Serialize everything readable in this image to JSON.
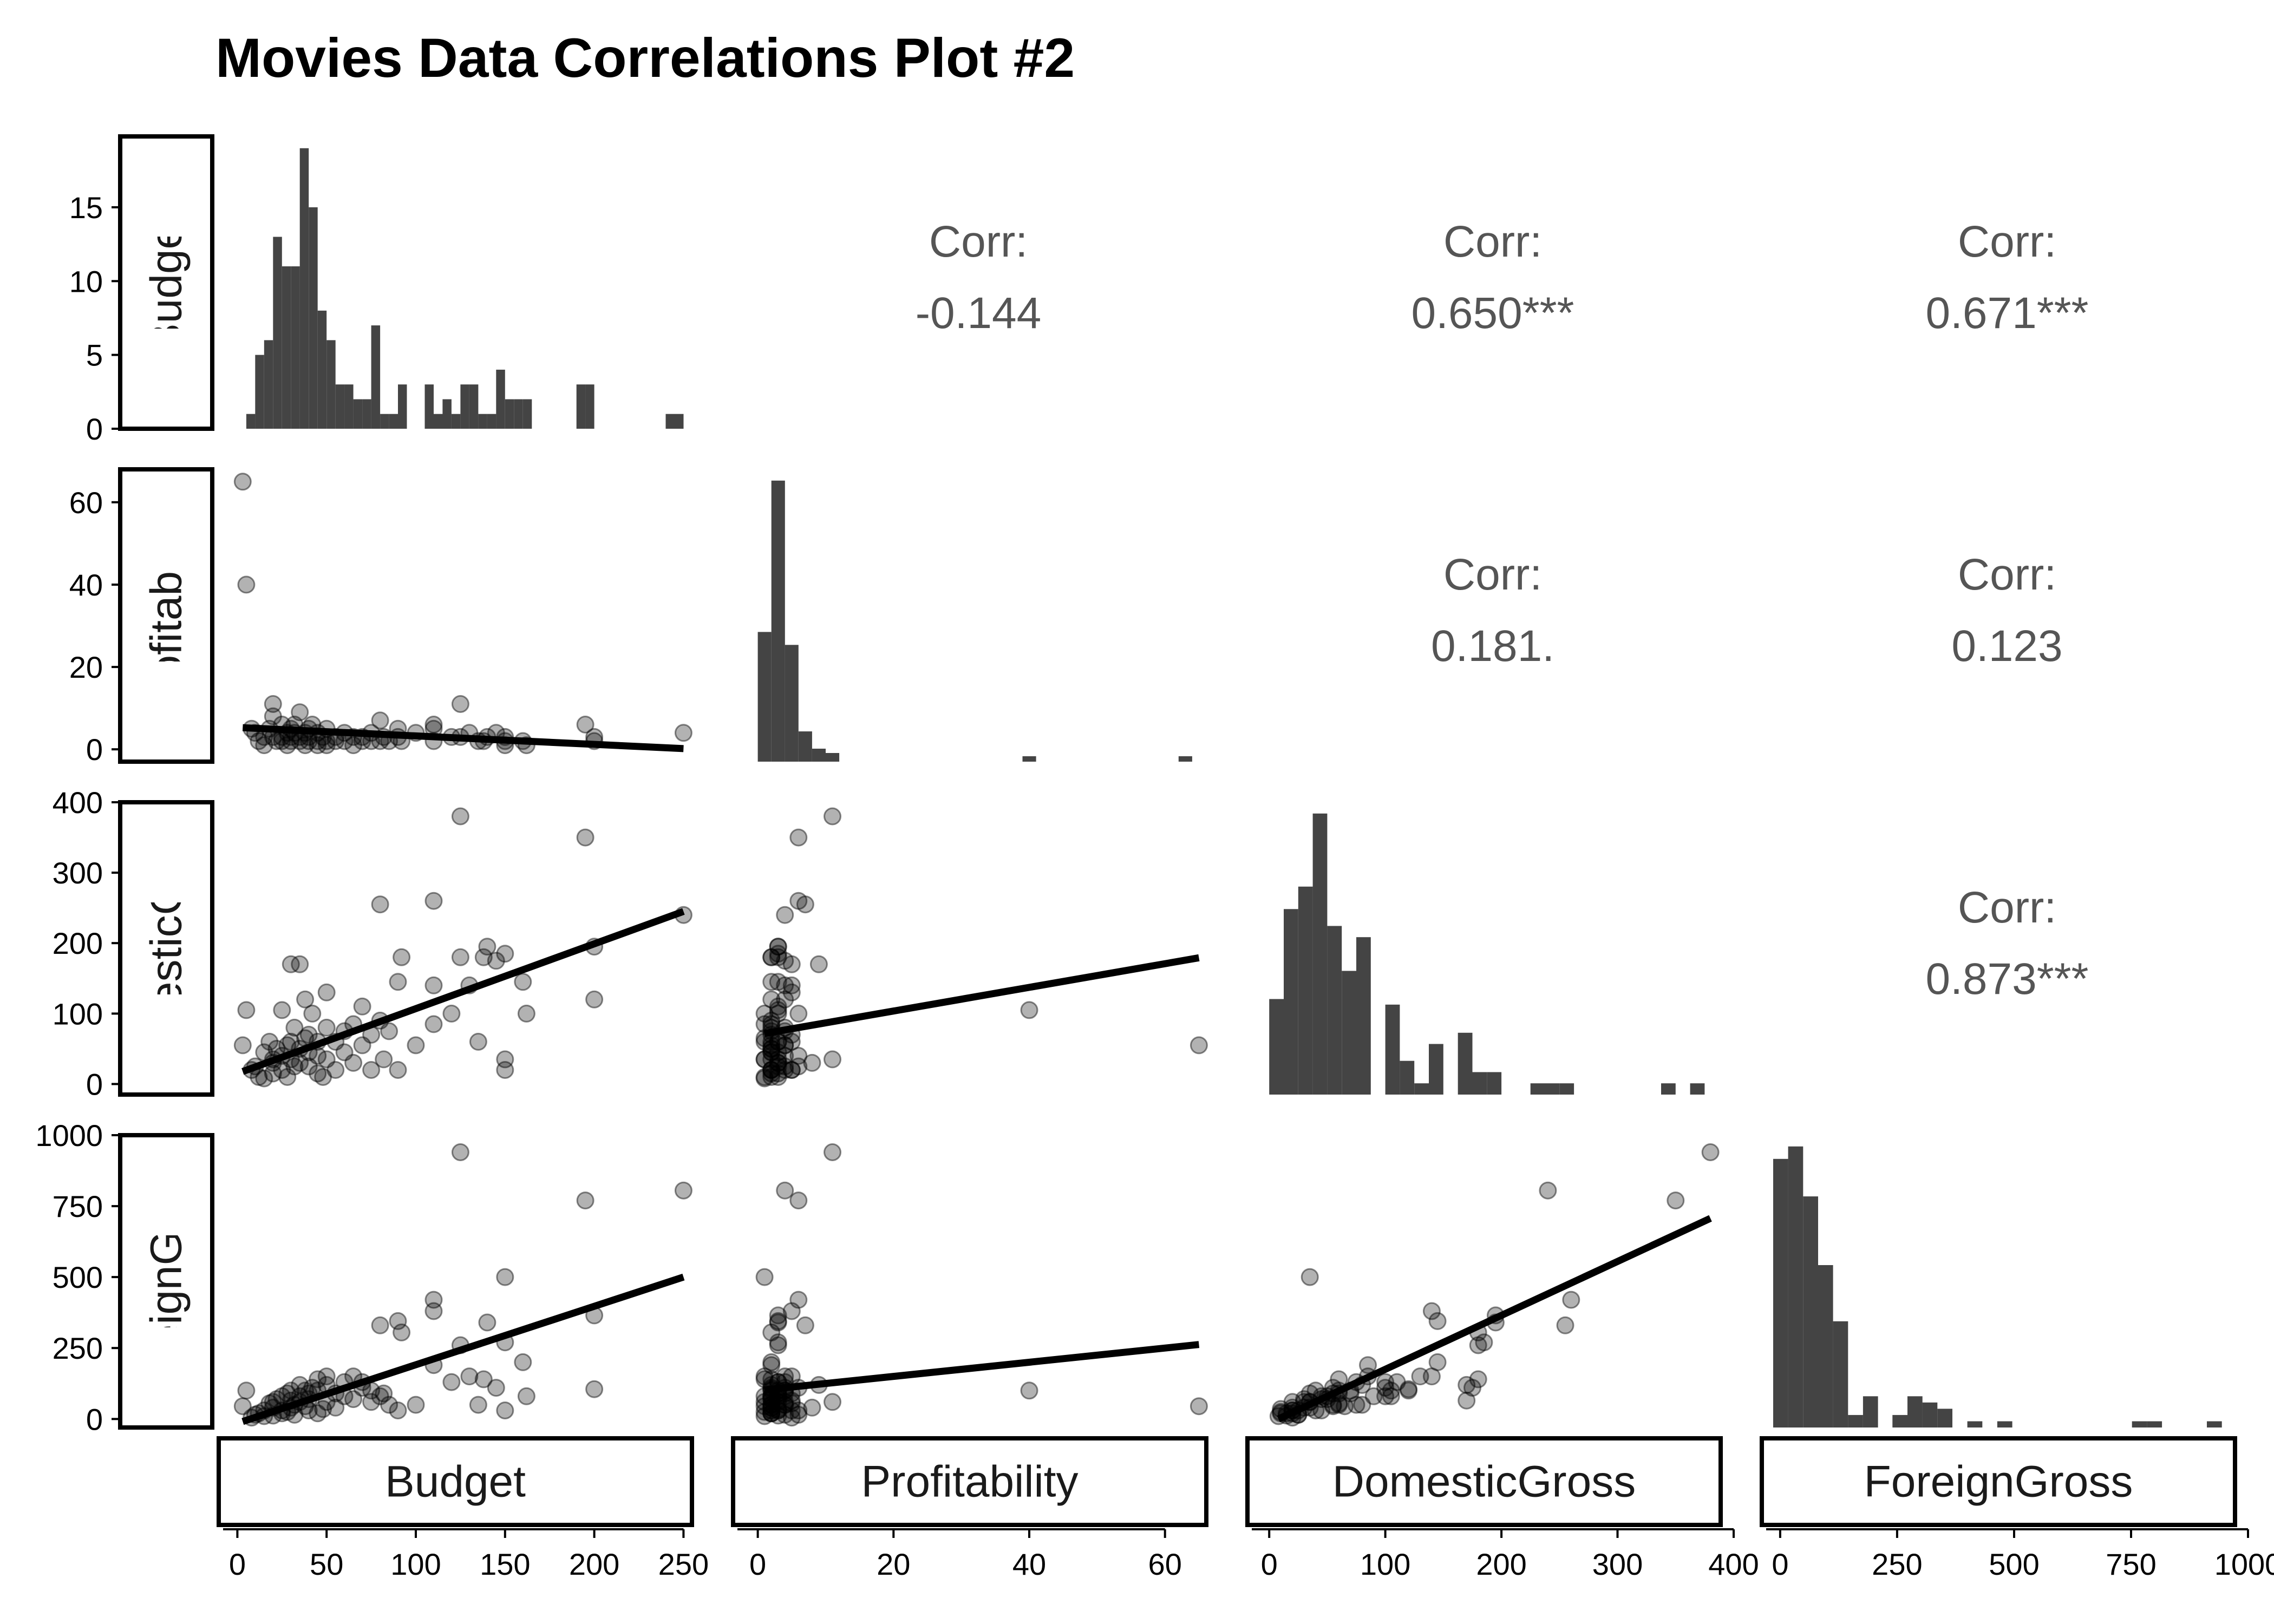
{
  "chart_data": {
    "type": "scatter-matrix",
    "title": "Movies Data Correlations Plot #2",
    "variables": [
      "Budget",
      "Profitability",
      "DomesticGross",
      "ForeignGross"
    ],
    "axes": {
      "Budget": {
        "range": [
          -8,
          262
        ],
        "ticks": [
          0,
          50,
          100,
          150,
          200,
          250
        ]
      },
      "Profitability": {
        "range": [
          -3,
          68
        ],
        "ticks": [
          0,
          20,
          40,
          60
        ]
      },
      "DomesticGross": {
        "range": [
          -15,
          400
        ],
        "ticks": [
          0,
          100,
          200,
          300,
          400
        ]
      },
      "ForeignGross": {
        "range": [
          -30,
          1000
        ],
        "ticks": [
          0,
          250,
          500,
          750,
          1000
        ]
      }
    },
    "histogram": {
      "Budget": {
        "ylim": [
          0,
          19.8
        ],
        "ticks": [
          0,
          5,
          10,
          15
        ],
        "bin_width": 5,
        "bins": [
          [
            5,
            1
          ],
          [
            10,
            5
          ],
          [
            15,
            6
          ],
          [
            20,
            13
          ],
          [
            25,
            11
          ],
          [
            30,
            11
          ],
          [
            35,
            19
          ],
          [
            40,
            15
          ],
          [
            45,
            8
          ],
          [
            50,
            6
          ],
          [
            55,
            3
          ],
          [
            60,
            3
          ],
          [
            65,
            2
          ],
          [
            70,
            2
          ],
          [
            75,
            7
          ],
          [
            80,
            1
          ],
          [
            85,
            1
          ],
          [
            90,
            3
          ],
          [
            95,
            0
          ],
          [
            100,
            0
          ],
          [
            105,
            3
          ],
          [
            110,
            1
          ],
          [
            115,
            2
          ],
          [
            120,
            1
          ],
          [
            125,
            3
          ],
          [
            130,
            3
          ],
          [
            135,
            1
          ],
          [
            140,
            1
          ],
          [
            145,
            4
          ],
          [
            150,
            2
          ],
          [
            155,
            2
          ],
          [
            160,
            2
          ],
          [
            190,
            3
          ],
          [
            195,
            3
          ],
          [
            240,
            1
          ],
          [
            245,
            1
          ]
        ]
      },
      "Profitability": {
        "bin_width": 2,
        "bins": [
          [
            0,
            30
          ],
          [
            2,
            65
          ],
          [
            4,
            27
          ],
          [
            6,
            7
          ],
          [
            8,
            3
          ],
          [
            10,
            2
          ],
          [
            39,
            1
          ],
          [
            62,
            1
          ]
        ]
      },
      "DomesticGross": {
        "bin_width": 12.5,
        "bins": [
          [
            0,
            17
          ],
          [
            12.5,
            33
          ],
          [
            25,
            37
          ],
          [
            37.5,
            50
          ],
          [
            50,
            30
          ],
          [
            62.5,
            22
          ],
          [
            75,
            28
          ],
          [
            100,
            16
          ],
          [
            112.5,
            6
          ],
          [
            125,
            2
          ],
          [
            137.5,
            9
          ],
          [
            162.5,
            11
          ],
          [
            175,
            4
          ],
          [
            187.5,
            4
          ],
          [
            225,
            2
          ],
          [
            237.5,
            2
          ],
          [
            250,
            2
          ],
          [
            337.5,
            2
          ],
          [
            362.5,
            2
          ]
        ]
      },
      "ForeignGross": {
        "bin_width": 32,
        "bins": [
          [
            -15,
            43
          ],
          [
            17,
            45
          ],
          [
            49,
            37
          ],
          [
            81,
            26
          ],
          [
            113,
            17
          ],
          [
            145,
            2
          ],
          [
            177,
            5
          ],
          [
            240,
            2
          ],
          [
            272,
            5
          ],
          [
            304,
            4
          ],
          [
            336,
            3
          ],
          [
            400,
            1
          ],
          [
            464,
            1
          ],
          [
            752,
            1
          ],
          [
            784,
            1
          ],
          [
            912,
            1
          ]
        ]
      }
    },
    "correlations": [
      {
        "row": "Budget",
        "col": "Profitability",
        "label": "Corr:",
        "value": "-0.144"
      },
      {
        "row": "Budget",
        "col": "DomesticGross",
        "label": "Corr:",
        "value": "0.650***"
      },
      {
        "row": "Budget",
        "col": "ForeignGross",
        "label": "Corr:",
        "value": "0.671***"
      },
      {
        "row": "Profitability",
        "col": "DomesticGross",
        "label": "Corr:",
        "value": "0.181."
      },
      {
        "row": "Profitability",
        "col": "ForeignGross",
        "label": "Corr:",
        "value": "0.123"
      },
      {
        "row": "DomesticGross",
        "col": "ForeignGross",
        "label": "Corr:",
        "value": "0.873***"
      }
    ],
    "points": [
      {
        "Budget": 3,
        "Profitability": 65,
        "DomesticGross": 55,
        "ForeignGross": 45
      },
      {
        "Budget": 5,
        "Profitability": 40,
        "DomesticGross": 105,
        "ForeignGross": 100
      },
      {
        "Budget": 8,
        "Profitability": 5,
        "DomesticGross": 20,
        "ForeignGross": 5
      },
      {
        "Budget": 10,
        "Profitability": 4,
        "DomesticGross": 25,
        "ForeignGross": 15
      },
      {
        "Budget": 12,
        "Profitability": 2,
        "DomesticGross": 10,
        "ForeignGross": 20
      },
      {
        "Budget": 15,
        "Profitability": 3,
        "DomesticGross": 45,
        "ForeignGross": 30
      },
      {
        "Budget": 15,
        "Profitability": 1,
        "DomesticGross": 8,
        "ForeignGross": 10
      },
      {
        "Budget": 18,
        "Profitability": 5,
        "DomesticGross": 60,
        "ForeignGross": 55
      },
      {
        "Budget": 20,
        "Profitability": 8,
        "DomesticGross": 30,
        "ForeignGross": 40
      },
      {
        "Budget": 20,
        "Profitability": 11,
        "DomesticGross": 35,
        "ForeignGross": 60
      },
      {
        "Budget": 20,
        "Profitability": 3,
        "DomesticGross": 15,
        "ForeignGross": 12
      },
      {
        "Budget": 22,
        "Profitability": 2,
        "DomesticGross": 50,
        "ForeignGross": 70
      },
      {
        "Budget": 25,
        "Profitability": 3,
        "DomesticGross": 105,
        "ForeignGross": 80
      },
      {
        "Budget": 25,
        "Profitability": 6,
        "DomesticGross": 40,
        "ForeignGross": 30
      },
      {
        "Budget": 25,
        "Profitability": 2,
        "DomesticGross": 20,
        "ForeignGross": 20
      },
      {
        "Budget": 28,
        "Profitability": 4,
        "DomesticGross": 55,
        "ForeignGross": 90
      },
      {
        "Budget": 28,
        "Profitability": 1,
        "DomesticGross": 10,
        "ForeignGross": 25
      },
      {
        "Budget": 30,
        "Profitability": 5,
        "DomesticGross": 170,
        "ForeignGross": 65
      },
      {
        "Budget": 30,
        "Profitability": 3,
        "DomesticGross": 60,
        "ForeignGross": 100
      },
      {
        "Budget": 30,
        "Profitability": 2,
        "DomesticGross": 35,
        "ForeignGross": 40
      },
      {
        "Budget": 32,
        "Profitability": 4,
        "DomesticGross": 80,
        "ForeignGross": 50
      },
      {
        "Budget": 32,
        "Profitability": 6,
        "DomesticGross": 25,
        "ForeignGross": 15
      },
      {
        "Budget": 35,
        "Profitability": 9,
        "DomesticGross": 170,
        "ForeignGross": 120
      },
      {
        "Budget": 35,
        "Profitability": 2,
        "DomesticGross": 50,
        "ForeignGross": 80
      },
      {
        "Budget": 35,
        "Profitability": 3,
        "DomesticGross": 30,
        "ForeignGross": 60
      },
      {
        "Budget": 38,
        "Profitability": 1,
        "DomesticGross": 65,
        "ForeignGross": 45
      },
      {
        "Budget": 38,
        "Profitability": 4,
        "DomesticGross": 120,
        "ForeignGross": 100
      },
      {
        "Budget": 40,
        "Profitability": 5,
        "DomesticGross": 70,
        "ForeignGross": 90
      },
      {
        "Budget": 40,
        "Profitability": 2,
        "DomesticGross": 45,
        "ForeignGross": 70
      },
      {
        "Budget": 40,
        "Profitability": 3,
        "DomesticGross": 25,
        "ForeignGross": 30
      },
      {
        "Budget": 42,
        "Profitability": 6,
        "DomesticGross": 100,
        "ForeignGross": 110
      },
      {
        "Budget": 45,
        "Profitability": 2,
        "DomesticGross": 15,
        "ForeignGross": 20
      },
      {
        "Budget": 45,
        "Profitability": 1,
        "DomesticGross": 60,
        "ForeignGross": 140
      },
      {
        "Budget": 45,
        "Profitability": 4,
        "DomesticGross": 40,
        "ForeignGross": 100
      },
      {
        "Budget": 48,
        "Profitability": 3,
        "DomesticGross": 10,
        "ForeignGross": 35
      },
      {
        "Budget": 50,
        "Profitability": 5,
        "DomesticGross": 130,
        "ForeignGross": 150
      },
      {
        "Budget": 50,
        "Profitability": 2,
        "DomesticGross": 80,
        "ForeignGross": 120
      },
      {
        "Budget": 50,
        "Profitability": 1,
        "DomesticGross": 35,
        "ForeignGross": 60
      },
      {
        "Budget": 55,
        "Profitability": 3,
        "DomesticGross": 60,
        "ForeignGross": 90
      },
      {
        "Budget": 55,
        "Profitability": 2,
        "DomesticGross": 20,
        "ForeignGross": 40
      },
      {
        "Budget": 60,
        "Profitability": 4,
        "DomesticGross": 75,
        "ForeignGross": 130
      },
      {
        "Budget": 60,
        "Profitability": 2,
        "DomesticGross": 45,
        "ForeignGross": 80
      },
      {
        "Budget": 65,
        "Profitability": 3,
        "DomesticGross": 30,
        "ForeignGross": 70
      },
      {
        "Budget": 65,
        "Profitability": 1,
        "DomesticGross": 85,
        "ForeignGross": 150
      },
      {
        "Budget": 70,
        "Profitability": 2,
        "DomesticGross": 55,
        "ForeignGross": 110
      },
      {
        "Budget": 70,
        "Profitability": 3,
        "DomesticGross": 110,
        "ForeignGross": 130
      },
      {
        "Budget": 75,
        "Profitability": 4,
        "DomesticGross": 20,
        "ForeignGross": 60
      },
      {
        "Budget": 75,
        "Profitability": 2,
        "DomesticGross": 70,
        "ForeignGross": 100
      },
      {
        "Budget": 80,
        "Profitability": 7,
        "DomesticGross": 255,
        "ForeignGross": 330
      },
      {
        "Budget": 80,
        "Profitability": 2,
        "DomesticGross": 90,
        "ForeignGross": 80
      },
      {
        "Budget": 82,
        "Profitability": 3,
        "DomesticGross": 35,
        "ForeignGross": 90
      },
      {
        "Budget": 85,
        "Profitability": 2,
        "DomesticGross": 75,
        "ForeignGross": 50
      },
      {
        "Budget": 90,
        "Profitability": 3,
        "DomesticGross": 145,
        "ForeignGross": 345
      },
      {
        "Budget": 90,
        "Profitability": 5,
        "DomesticGross": 20,
        "ForeignGross": 30
      },
      {
        "Budget": 92,
        "Profitability": 2,
        "DomesticGross": 180,
        "ForeignGross": 305
      },
      {
        "Budget": 100,
        "Profitability": 4,
        "DomesticGross": 55,
        "ForeignGross": 50
      },
      {
        "Budget": 110,
        "Profitability": 6,
        "DomesticGross": 260,
        "ForeignGross": 420
      },
      {
        "Budget": 110,
        "Profitability": 5,
        "DomesticGross": 140,
        "ForeignGross": 380
      },
      {
        "Budget": 110,
        "Profitability": 2,
        "DomesticGross": 85,
        "ForeignGross": 190
      },
      {
        "Budget": 120,
        "Profitability": 3,
        "DomesticGross": 100,
        "ForeignGross": 130
      },
      {
        "Budget": 125,
        "Profitability": 11,
        "DomesticGross": 380,
        "ForeignGross": 940
      },
      {
        "Budget": 125,
        "Profitability": 3,
        "DomesticGross": 180,
        "ForeignGross": 260
      },
      {
        "Budget": 130,
        "Profitability": 4,
        "DomesticGross": 140,
        "ForeignGross": 150
      },
      {
        "Budget": 135,
        "Profitability": 2,
        "DomesticGross": 60,
        "ForeignGross": 50
      },
      {
        "Budget": 138,
        "Profitability": 2,
        "DomesticGross": 180,
        "ForeignGross": 140
      },
      {
        "Budget": 140,
        "Profitability": 3,
        "DomesticGross": 195,
        "ForeignGross": 340
      },
      {
        "Budget": 145,
        "Profitability": 4,
        "DomesticGross": 175,
        "ForeignGross": 110
      },
      {
        "Budget": 150,
        "Profitability": 1,
        "DomesticGross": 35,
        "ForeignGross": 500
      },
      {
        "Budget": 150,
        "Profitability": 2,
        "DomesticGross": 20,
        "ForeignGross": 30
      },
      {
        "Budget": 150,
        "Profitability": 3,
        "DomesticGross": 185,
        "ForeignGross": 270
      },
      {
        "Budget": 160,
        "Profitability": 2,
        "DomesticGross": 145,
        "ForeignGross": 200
      },
      {
        "Budget": 162,
        "Profitability": 1,
        "DomesticGross": 100,
        "ForeignGross": 80
      },
      {
        "Budget": 195,
        "Profitability": 6,
        "DomesticGross": 350,
        "ForeignGross": 770
      },
      {
        "Budget": 200,
        "Profitability": 3,
        "DomesticGross": 195,
        "ForeignGross": 365
      },
      {
        "Budget": 200,
        "Profitability": 2,
        "DomesticGross": 120,
        "ForeignGross": 105
      },
      {
        "Budget": 250,
        "Profitability": 4,
        "DomesticGross": 240,
        "ForeignGross": 805
      }
    ],
    "fits": {
      "Profitability~Budget": [
        5.3,
        -0.0205
      ],
      "DomesticGross~Budget": [
        15,
        0.92
      ],
      "DomesticGross~Profitability": [
        70,
        1.68
      ],
      "ForeignGross~Budget": [
        -15,
        2.06
      ],
      "ForeignGross~Profitability": [
        100,
        2.5
      ],
      "ForeignGross~DomesticGross": [
        -15,
        1.9
      ]
    },
    "colors": {
      "bar": "#444444",
      "point": "#000000",
      "line": "#000000",
      "corr_text": "#555555"
    },
    "grid": false
  }
}
